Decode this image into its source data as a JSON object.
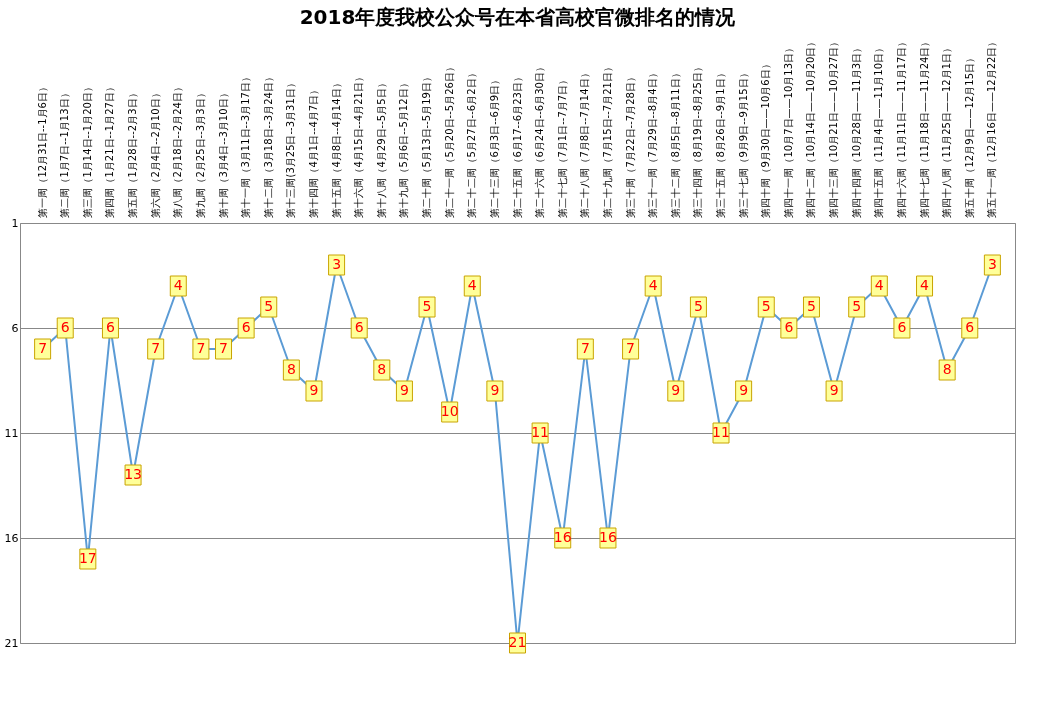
{
  "chart_data": {
    "type": "line",
    "title": "2018年度我校公众号在本省高校官微排名的情况",
    "categories": [
      "第一周（12月31日--1月6日）",
      "第二周（1月7日--1月13日）",
      "第三周（1月14日--1月20日）",
      "第四周（1月21日--1月27日）",
      "第五周（1月28日--2月3日）",
      "第六周（2月4日--2月10日）",
      "第八周（2月18日--2月24日）",
      "第九周（2月25日--3月3日）",
      "第十周（3月4日--3月10日）",
      "第十一周（3月11日--3月17日）",
      "第十二周（3月18日--3月24日）",
      "第十三周(3月25日--3月31日）",
      "第十四周（4月1日--4月7日）",
      "第十五周（4月8日--4月14日）",
      "第十六周（4月15日--4月21日）",
      "第十八周（4月29日--5月5日）",
      "第十九周（5月6日--5月12日）",
      "第二十周（5月13日--5月19日）",
      "第二十一周（5月20日--5月26日）",
      "第二十二周（5月27日--6月2日）",
      "第二十三周（6月3日--6月9日）",
      "第二十五周（6月17--6月23日）",
      "第二十六周（6月24日--6月30日）",
      "第二十七周（7月1日--7月7日）",
      "第二十八周（7月8日--7月14日）",
      "第二十九周（7月15日--7月21日）",
      "第三十周（7月22日--7月28日）",
      "第三十一周（7月29日--8月4日）",
      "第三十二周（8月5日--8月11日）",
      "第三十四周（8月19日--8月25日）",
      "第三十五周（8月26日--9月1日）",
      "第三十七周（9月9日--9月15日）",
      "第四十周（9月30日——10月6日）",
      "第四十一周（10月7日——10月13日）",
      "第四十二周（10月14日——10月20日）",
      "第四十三周（10月21日——10月27日）",
      "第四十四周（10月28日——11月3日）",
      "第四十五周（11月4日——11月10日）",
      "第四十六周（11月11日——11月17日）",
      "第四十七周（11月18日——11月24日）",
      "第四十八周（11月25日——12月1日）",
      "第五十周（12月9日——12月15日）",
      "第五十一周（12月16日——12月22日）"
    ],
    "series": [
      {
        "color": "#5b9bd5",
        "values": [
          7,
          6,
          17,
          6,
          13,
          7,
          4,
          7,
          7,
          6,
          5,
          8,
          9,
          3,
          6,
          8,
          9,
          5,
          10,
          4,
          9,
          21,
          11,
          16,
          7,
          16,
          7,
          4,
          9,
          5,
          11,
          9,
          5,
          6,
          5,
          9,
          5,
          4,
          6,
          4,
          8,
          6,
          3
        ]
      }
    ],
    "ylim": [
      21,
      1
    ],
    "yticks": [
      1,
      6,
      11,
      16,
      21
    ],
    "grid": "y",
    "marker": "square",
    "data_labels": true,
    "legend": false
  }
}
